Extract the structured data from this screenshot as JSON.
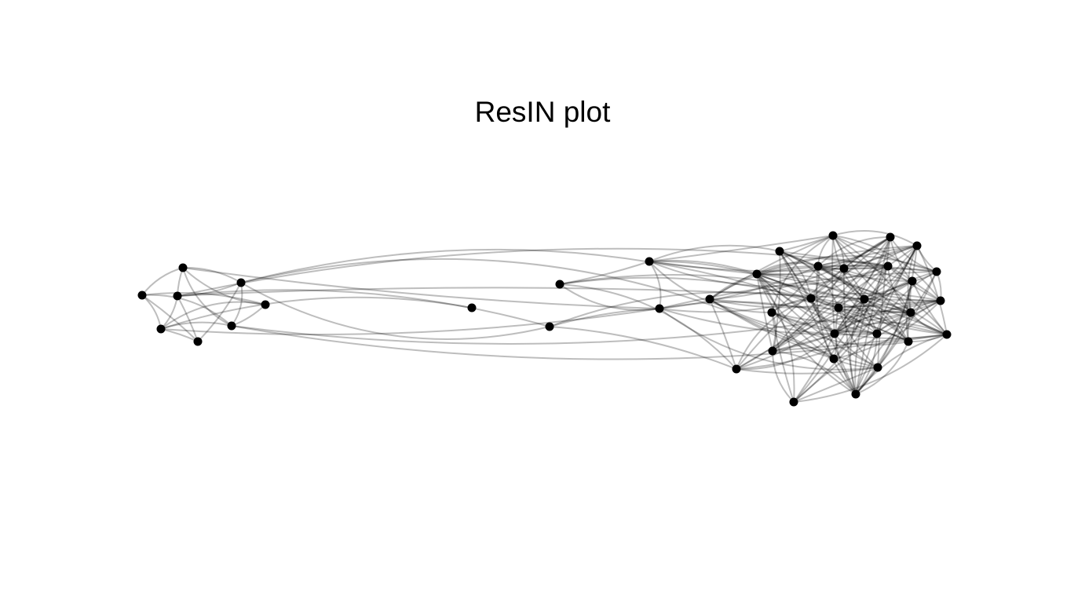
{
  "title": "ResIN plot",
  "colors": {
    "background": "#ffffff",
    "edge": "#000000",
    "node": "#000000"
  }
}
